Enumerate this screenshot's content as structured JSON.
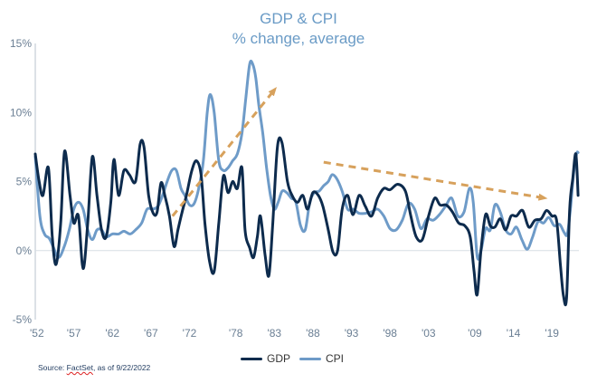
{
  "header": {
    "title": "GDP & CPI",
    "subtitle": "% change, average"
  },
  "source": {
    "prefix": "Source: ",
    "name": "FactSet",
    "suffix": ", as of 9/22/2022"
  },
  "colors": {
    "gdp": "#0d2b4d",
    "cpi": "#6e9bc8",
    "arrow": "#d7a15c",
    "axis": "#6b7f94"
  },
  "chart_data": {
    "type": "line",
    "title": "GDP & CPI",
    "subtitle": "% change, average",
    "xlim": [
      1952,
      2022.5
    ],
    "ylim": [
      -5,
      15
    ],
    "y_ticks": [
      -5,
      0,
      5,
      10,
      15
    ],
    "y_tick_labels": [
      "-5%",
      "0%",
      "5%",
      "10%",
      "15%"
    ],
    "x_ticks": [
      1952,
      1957,
      1962,
      1967,
      1972,
      1978,
      1983,
      1988,
      1993,
      1998,
      2003,
      2009,
      2014,
      2019
    ],
    "x_tick_labels": [
      "'52",
      "'57",
      "'62",
      "'67",
      "'72",
      "'78",
      "'83",
      "'88",
      "'93",
      "'98",
      "'03",
      "'09",
      "'14",
      "'19"
    ],
    "legend": "bottom-center",
    "grid": false,
    "series": [
      {
        "name": "GDP",
        "x": [
          1952,
          1952.5,
          1953,
          1953.7,
          1954.2,
          1954.7,
          1955.3,
          1955.8,
          1956.5,
          1957,
          1957.6,
          1958.2,
          1958.8,
          1959.4,
          1960,
          1960.6,
          1961.2,
          1961.8,
          1962.2,
          1962.8,
          1963.5,
          1964.2,
          1965,
          1965.6,
          1966.1,
          1966.7,
          1967.3,
          1967.8,
          1968.3,
          1968.8,
          1969.4,
          1970,
          1970.5,
          1971,
          1971.6,
          1972.3,
          1972.9,
          1973.5,
          1974,
          1974.6,
          1975.2,
          1975.8,
          1976.4,
          1977,
          1977.6,
          1978.2,
          1978.8,
          1979.2,
          1979.8,
          1980.3,
          1980.8,
          1981.2,
          1981.8,
          1982.3,
          1982.8,
          1983.4,
          1984,
          1984.7,
          1985.3,
          1986,
          1986.7,
          1987.3,
          1988,
          1988.7,
          1989.3,
          1990,
          1990.6,
          1991.2,
          1991.8,
          1992.5,
          1993.2,
          1994,
          1994.8,
          1995.6,
          1996.4,
          1997.2,
          1998,
          1999,
          2000,
          2000.7,
          2001.4,
          2002.2,
          2003,
          2003.8,
          2004.5,
          2005.3,
          2006.1,
          2006.9,
          2007.7,
          2008.4,
          2008.9,
          2009.3,
          2009.8,
          2010.4,
          2011,
          2011.6,
          2012.3,
          2013,
          2013.7,
          2014.4,
          2015.2,
          2016,
          2016.8,
          2017.6,
          2018.3,
          2019,
          2019.6,
          2020.1,
          2020.5,
          2020.9,
          2021.3,
          2021.7,
          2022.1,
          2022.4
        ],
        "values": [
          7.0,
          5.0,
          4.0,
          6.0,
          1.0,
          -1.0,
          2.0,
          7.2,
          4.0,
          2.0,
          2.5,
          -1.3,
          2.0,
          6.8,
          4.0,
          1.5,
          1.0,
          3.5,
          6.6,
          4.0,
          5.8,
          5.5,
          5.0,
          7.7,
          7.5,
          4.0,
          2.7,
          2.8,
          4.9,
          4.0,
          2.5,
          0.3,
          1.5,
          2.7,
          4.0,
          5.8,
          6.5,
          5.5,
          2.0,
          -0.8,
          -1.5,
          2.0,
          5.4,
          4.2,
          5.0,
          4.5,
          6.0,
          1.5,
          0.2,
          -0.5,
          1.0,
          2.5,
          -0.3,
          -1.8,
          2.0,
          7.5,
          7.8,
          5.0,
          4.0,
          3.5,
          4.0,
          3.0,
          4.2,
          4.0,
          3.2,
          1.5,
          -0.1,
          0.0,
          3.0,
          4.0,
          2.6,
          4.0,
          3.2,
          2.5,
          3.8,
          4.5,
          4.4,
          4.8,
          4.3,
          2.5,
          1.0,
          0.8,
          2.5,
          3.8,
          3.3,
          3.3,
          2.8,
          2.0,
          1.8,
          1.0,
          -1.5,
          -3.2,
          0.0,
          2.6,
          1.8,
          1.7,
          2.3,
          1.5,
          2.5,
          2.5,
          2.9,
          1.7,
          2.2,
          2.3,
          2.9,
          2.5,
          2.2,
          -1.0,
          -3.3,
          -3.4,
          3.0,
          5.2,
          7.0,
          4.0
        ]
      },
      {
        "name": "CPI",
        "x": [
          1952,
          1952.6,
          1953.2,
          1953.8,
          1954.3,
          1955,
          1955.7,
          1956.4,
          1957,
          1957.6,
          1958.2,
          1958.8,
          1959.4,
          1960,
          1960.6,
          1961.2,
          1962,
          1962.8,
          1963.5,
          1964.3,
          1965,
          1965.8,
          1966.5,
          1967.2,
          1967.9,
          1968.5,
          1969.1,
          1969.7,
          1970.3,
          1970.9,
          1971.4,
          1972,
          1972.6,
          1973.2,
          1973.8,
          1974.3,
          1974.7,
          1975.2,
          1975.8,
          1976.4,
          1977,
          1977.6,
          1978.2,
          1978.8,
          1979.3,
          1979.8,
          1980.2,
          1980.6,
          1981,
          1981.5,
          1982,
          1982.5,
          1983,
          1983.5,
          1984,
          1984.6,
          1985.2,
          1985.8,
          1986.4,
          1987,
          1987.6,
          1988.2,
          1988.8,
          1989.4,
          1990,
          1990.5,
          1991.1,
          1991.8,
          1992.5,
          1993.2,
          1994,
          1994.8,
          1995.6,
          1996.4,
          1997.2,
          1998,
          1998.8,
          1999.6,
          2000.4,
          2001.2,
          2002,
          2002.8,
          2003.6,
          2004.4,
          2005.2,
          2006,
          2006.8,
          2007.6,
          2008.3,
          2008.8,
          2009.3,
          2009.8,
          2010.4,
          2011,
          2011.6,
          2012.3,
          2013,
          2013.7,
          2014.4,
          2015.1,
          2015.8,
          2016.5,
          2017.2,
          2017.9,
          2018.6,
          2019.3,
          2020,
          2020.6,
          2021,
          2021.4,
          2021.8,
          2022.2,
          2022.4
        ],
        "values": [
          6.8,
          2.5,
          1.2,
          0.9,
          0.3,
          -0.5,
          0.2,
          1.5,
          3.0,
          3.5,
          3.0,
          1.5,
          0.8,
          1.5,
          1.5,
          1.0,
          1.2,
          1.2,
          1.4,
          1.2,
          1.5,
          2.0,
          3.0,
          3.0,
          3.2,
          4.0,
          5.0,
          5.8,
          5.8,
          4.5,
          4.0,
          3.3,
          3.4,
          4.5,
          6.5,
          10.0,
          11.3,
          10.0,
          6.5,
          5.8,
          6.0,
          6.5,
          7.0,
          8.5,
          11.0,
          13.5,
          13.5,
          12.5,
          10.5,
          8.5,
          6.0,
          4.0,
          3.0,
          3.5,
          4.3,
          4.2,
          3.8,
          3.5,
          1.8,
          1.5,
          3.5,
          4.2,
          4.3,
          4.7,
          5.0,
          5.5,
          5.2,
          4.3,
          3.0,
          3.0,
          2.7,
          2.7,
          2.8,
          3.0,
          2.5,
          1.6,
          1.5,
          2.2,
          3.4,
          3.0,
          1.6,
          2.3,
          2.2,
          2.6,
          3.2,
          3.8,
          2.5,
          2.8,
          4.5,
          3.5,
          -0.4,
          0.0,
          1.6,
          1.5,
          3.3,
          2.8,
          1.5,
          1.2,
          1.7,
          0.8,
          0.1,
          1.0,
          2.1,
          2.0,
          2.4,
          1.8,
          1.9,
          1.3,
          1.2,
          3.0,
          5.5,
          7.0,
          7.1
        ]
      }
    ],
    "annotations": [
      {
        "type": "dashed-arrow",
        "from": [
          1969.8,
          2.5
        ],
        "to": [
          1983.1,
          11.7
        ]
      },
      {
        "type": "dashed-arrow",
        "from": [
          1989.4,
          6.4
        ],
        "to": [
          2018.1,
          3.8
        ]
      }
    ]
  },
  "legend_labels": {
    "gdp": "GDP",
    "cpi": "CPI"
  }
}
